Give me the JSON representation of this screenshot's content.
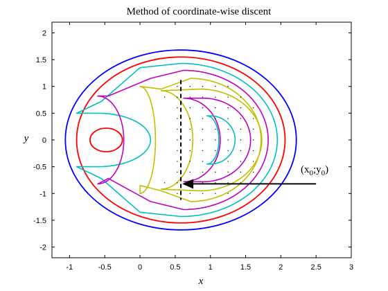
{
  "chart_data": {
    "type": "contour",
    "title": "Method of coordinate-wise discent",
    "xlabel": "x",
    "ylabel": "y",
    "xlim": [
      -1.25,
      3
    ],
    "ylim": [
      -2.2,
      2.2
    ],
    "xticks": [
      "-1",
      "-0.5",
      "0",
      "0.5",
      "1",
      "1.5",
      "2",
      "2.5",
      "3"
    ],
    "yticks": [
      "2",
      "1.5",
      "1",
      "0.5",
      "0",
      "-0.5",
      "-1",
      "-1.5",
      "-2"
    ],
    "grid": false,
    "contour_colors": {
      "outer": "#0000ff",
      "level_2": "#ff0000",
      "level_3": "#00bfbf",
      "level_4": "#bf00bf",
      "level_5": "#bfbf00"
    },
    "start_point": {
      "x": 0.6,
      "y": -0.8
    },
    "descent_path": {
      "x": 0.58,
      "y_from": 1.12,
      "y_to": -1.12
    },
    "annotation": {
      "base": "(x",
      "sub1": "0",
      "sep": ";y",
      "sub2": "0",
      "end": ")",
      "arrow_tail": {
        "x": 2.5,
        "y": -0.82
      },
      "arrow_head": {
        "x": 0.6,
        "y": -0.82
      }
    }
  }
}
